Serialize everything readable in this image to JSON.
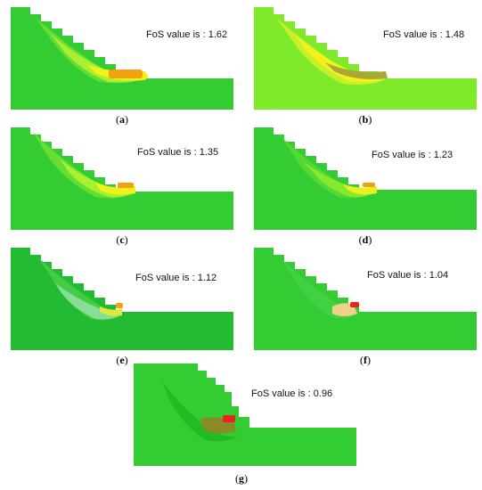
{
  "panels": [
    {
      "id": "a",
      "label": "a",
      "fos_text": "FoS value is : 1.62"
    },
    {
      "id": "b",
      "label": "b",
      "fos_text": "FoS value is : 1.48"
    },
    {
      "id": "c",
      "label": "c",
      "fos_text": "FoS value is : 1.35"
    },
    {
      "id": "d",
      "label": "d",
      "fos_text": "FoS value is : 1.23"
    },
    {
      "id": "e",
      "label": "e",
      "fos_text": "FoS value is : 1.12"
    },
    {
      "id": "f",
      "label": "f",
      "fos_text": "FoS value is : 1.04"
    },
    {
      "id": "g",
      "label": "g",
      "fos_text": "FoS value is : 0.96"
    }
  ],
  "colors": {
    "slope_green": "#33cc33",
    "zone_light_green": "#7fea2a",
    "zone_yellow": "#f2f21a",
    "zone_orange": "#f0a010",
    "zone_red": "#ee2020",
    "zone_tan": "#f0d08a",
    "zone_olive": "#8a8a28"
  }
}
